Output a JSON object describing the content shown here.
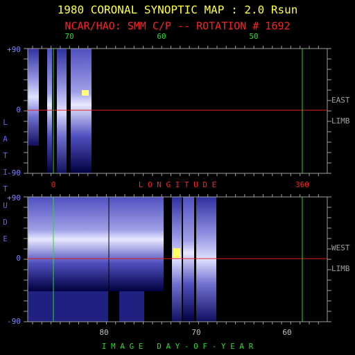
{
  "title": "1980 CORONAL SYNOPTIC MAP : 2.0 Rsun",
  "subtitle": "NCAR/HAO: SMM C/P -- ROTATION # 1692",
  "y_axis_label": "LATITUDE",
  "top_panel": {
    "top_ticks": [
      "70",
      "60",
      "50"
    ],
    "y_ticks": [
      "+90",
      "0",
      "-90"
    ],
    "side_label": [
      "EAST",
      "LIMB"
    ],
    "bottom_ticks": [
      "0",
      "360"
    ]
  },
  "middle_label": "L O N G I T U D E",
  "bottom_panel": {
    "y_ticks": [
      "+90",
      "0",
      "-90"
    ],
    "side_label": [
      "WEST",
      "LIMB"
    ],
    "bottom_ticks": [
      "80",
      "70",
      "60"
    ]
  },
  "x_axis_label": "I M A G E   D A Y - O F - Y E A R"
}
